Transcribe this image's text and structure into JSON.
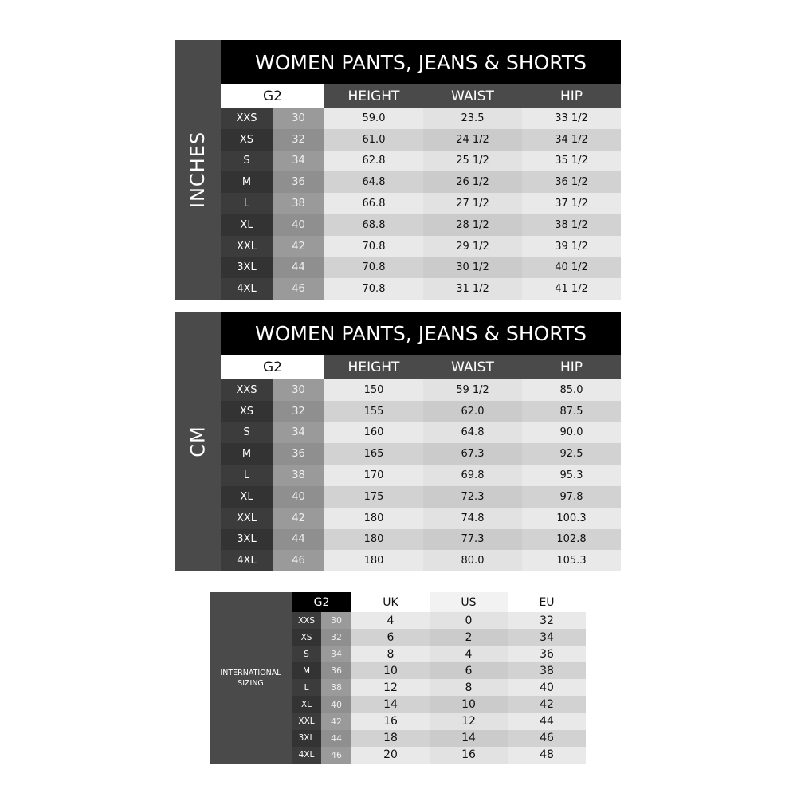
{
  "sizes": [
    "XXS",
    "XS",
    "S",
    "M",
    "L",
    "XL",
    "XXL",
    "3XL",
    "4XL"
  ],
  "g2": [
    "30",
    "32",
    "34",
    "36",
    "38",
    "40",
    "42",
    "44",
    "46"
  ],
  "inches": {
    "side_label": "INCHES",
    "title": "WOMEN PANTS, JEANS & SHORTS",
    "headers": [
      "G2",
      "HEIGHT",
      "WAIST",
      "HIP"
    ],
    "rows": [
      [
        "59.0",
        "23.5",
        "33 1/2"
      ],
      [
        "61.0",
        "24 1/2",
        "34 1/2"
      ],
      [
        "62.8",
        "25 1/2",
        "35 1/2"
      ],
      [
        "64.8",
        "26 1/2",
        "36 1/2"
      ],
      [
        "66.8",
        "27 1/2",
        "37 1/2"
      ],
      [
        "68.8",
        "28 1/2",
        "38 1/2"
      ],
      [
        "70.8",
        "29 1/2",
        "39 1/2"
      ],
      [
        "70.8",
        "30 1/2",
        "40 1/2"
      ],
      [
        "70.8",
        "31 1/2",
        "41 1/2"
      ]
    ]
  },
  "cm": {
    "side_label": "CM",
    "title": "WOMEN PANTS, JEANS & SHORTS",
    "headers": [
      "G2",
      "HEIGHT",
      "WAIST",
      "HIP"
    ],
    "rows": [
      [
        "150",
        "59 1/2",
        "85.0"
      ],
      [
        "155",
        "62.0",
        "87.5"
      ],
      [
        "160",
        "64.8",
        "90.0"
      ],
      [
        "165",
        "67.3",
        "92.5"
      ],
      [
        "170",
        "69.8",
        "95.3"
      ],
      [
        "175",
        "72.3",
        "97.8"
      ],
      [
        "180",
        "74.8",
        "100.3"
      ],
      [
        "180",
        "77.3",
        "102.8"
      ],
      [
        "180",
        "80.0",
        "105.3"
      ]
    ]
  },
  "international": {
    "label_line1": "INTERNATIONAL",
    "label_line2": "SIZING",
    "headers": [
      "G2",
      "UK",
      "US",
      "EU"
    ],
    "rows": [
      [
        "4",
        "0",
        "32"
      ],
      [
        "6",
        "2",
        "34"
      ],
      [
        "8",
        "4",
        "36"
      ],
      [
        "10",
        "6",
        "38"
      ],
      [
        "12",
        "8",
        "40"
      ],
      [
        "14",
        "10",
        "42"
      ],
      [
        "16",
        "12",
        "44"
      ],
      [
        "18",
        "14",
        "46"
      ],
      [
        "20",
        "16",
        "48"
      ]
    ]
  }
}
